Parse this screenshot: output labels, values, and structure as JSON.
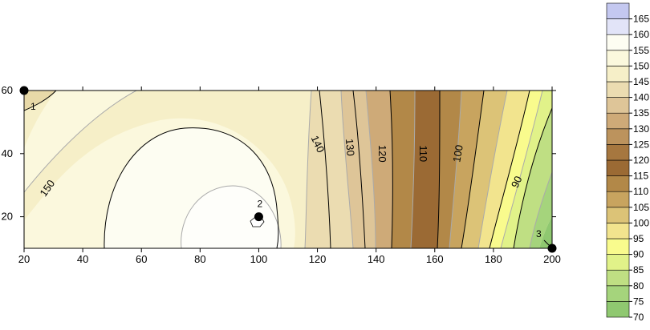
{
  "chart_data": {
    "type": "contour",
    "title": "",
    "xlabel": "",
    "ylabel": "",
    "xlim": [
      20,
      200
    ],
    "ylim": [
      10,
      60
    ],
    "x_ticks": [
      20,
      40,
      60,
      80,
      100,
      120,
      140,
      160,
      180,
      200
    ],
    "y_ticks": [
      20,
      40,
      60
    ],
    "y_tick_labels": [
      "20",
      "40",
      "60"
    ],
    "wells": [
      {
        "label": "1",
        "x": 20,
        "y": 60
      },
      {
        "label": "2",
        "x": 100,
        "y": 20
      },
      {
        "label": "3",
        "x": 200,
        "y": 10
      }
    ],
    "contour_lines": [
      {
        "level": 150,
        "x": 28,
        "y": 29
      },
      {
        "level": 140,
        "x": 120,
        "y": 43
      },
      {
        "level": 130,
        "x": 131,
        "y": 42
      },
      {
        "level": 120,
        "x": 142,
        "y": 40
      },
      {
        "level": 110,
        "x": 156,
        "y": 40
      },
      {
        "level": 100,
        "x": 168,
        "y": 40
      },
      {
        "level": 90,
        "x": 188,
        "y": 31
      }
    ],
    "legend_levels": [
      70,
      75,
      80,
      85,
      90,
      95,
      100,
      105,
      110,
      115,
      120,
      125,
      130,
      135,
      140,
      145,
      150,
      155,
      160,
      165
    ],
    "legend_labels": [
      "165",
      "160",
      "155",
      "150",
      "145",
      "140",
      "135",
      "130",
      "125",
      "120",
      "115",
      "110",
      "105",
      "100",
      "95",
      "90",
      "85",
      "80",
      "75",
      "70"
    ],
    "color_bands": [
      {
        "from": 70,
        "to": 75,
        "color": "#8fc870"
      },
      {
        "from": 75,
        "to": 80,
        "color": "#a5d47c"
      },
      {
        "from": 80,
        "to": 85,
        "color": "#bfdf83"
      },
      {
        "from": 85,
        "to": 90,
        "color": "#e1f289"
      },
      {
        "from": 90,
        "to": 95,
        "color": "#f9fb8d"
      },
      {
        "from": 95,
        "to": 100,
        "color": "#f2e48e"
      },
      {
        "from": 100,
        "to": 105,
        "color": "#dcc377"
      },
      {
        "from": 105,
        "to": 110,
        "color": "#c8a45f"
      },
      {
        "from": 110,
        "to": 115,
        "color": "#b28848"
      },
      {
        "from": 115,
        "to": 120,
        "color": "#9b6a34"
      },
      {
        "from": 120,
        "to": 125,
        "color": "#a6773f"
      },
      {
        "from": 125,
        "to": 130,
        "color": "#bc935d"
      },
      {
        "from": 130,
        "to": 135,
        "color": "#ceaa78"
      },
      {
        "from": 135,
        "to": 140,
        "color": "#dec598"
      },
      {
        "from": 140,
        "to": 145,
        "color": "#ebdcb1"
      },
      {
        "from": 145,
        "to": 150,
        "color": "#f6efc8"
      },
      {
        "from": 150,
        "to": 155,
        "color": "#fbf8dd"
      },
      {
        "from": 155,
        "to": 160,
        "color": "#fdfdf2"
      },
      {
        "from": 160,
        "to": 165,
        "color": "#e2e4f8"
      },
      {
        "from": 165,
        "to": 170,
        "color": "#c4c8f0"
      }
    ]
  }
}
